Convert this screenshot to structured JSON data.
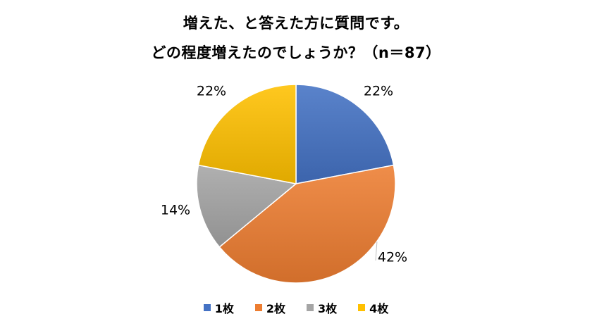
{
  "chart_data": {
    "type": "pie",
    "title_line1": "増えた、と答えた方に質問です。",
    "title_line2": "どの程度増えたのでしょうか？（n＝87）",
    "categories": [
      "1枚",
      "2枚",
      "3枚",
      "4枚"
    ],
    "values": [
      22,
      42,
      14,
      22
    ],
    "labels": [
      "22%",
      "42%",
      "14%",
      "22%"
    ],
    "colors": [
      "#4472C4",
      "#ED7D31",
      "#A5A5A5",
      "#FFC000"
    ],
    "legend_position": "bottom"
  }
}
